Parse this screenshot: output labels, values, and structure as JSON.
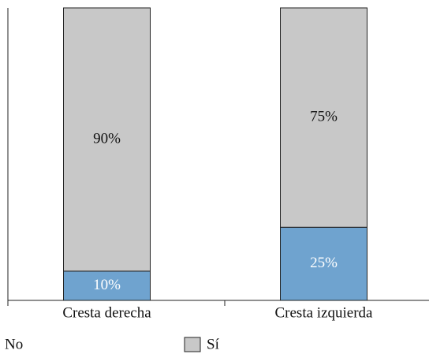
{
  "chart_data": {
    "type": "stacked_bar",
    "categories": [
      "Cresta derecha",
      "Cresta izquierda"
    ],
    "series": [
      {
        "name": "No",
        "color": "#6fa3cf",
        "values": [
          10,
          25
        ],
        "value_labels": [
          "10%",
          "25%"
        ],
        "label_color": "#ffffff"
      },
      {
        "name": "Sí",
        "color": "#c8c8c8",
        "values": [
          90,
          75
        ],
        "value_labels": [
          "90%",
          "75%"
        ],
        "label_color": "#111111"
      }
    ],
    "ylim": [
      0,
      100
    ]
  }
}
